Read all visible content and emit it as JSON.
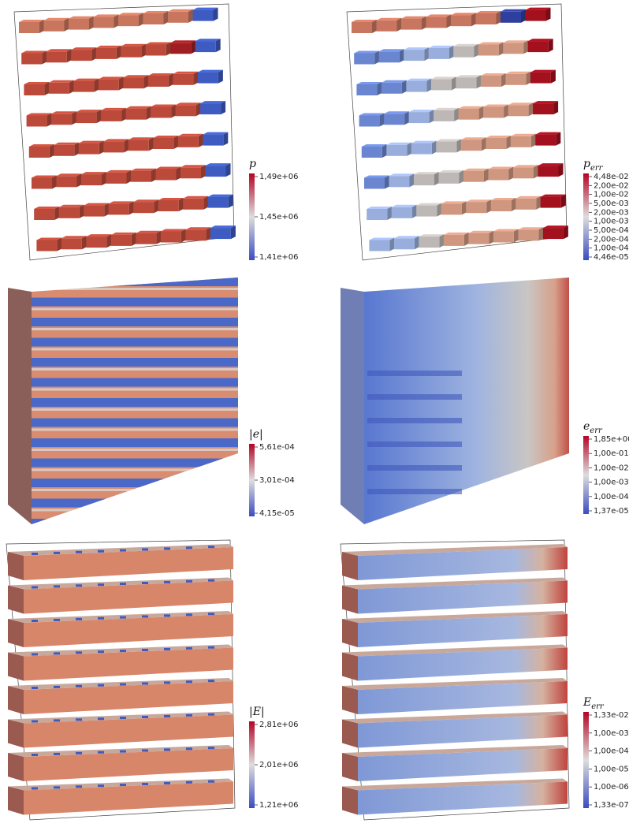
{
  "panels": [
    {
      "colorbar": {
        "symbol": "p",
        "ticks": [
          "1,49e+06",
          "1,45e+06",
          "1,41e+06"
        ]
      }
    },
    {
      "colorbar": {
        "symbol": "p",
        "subscript": "err",
        "ticks": [
          "4,48e-02",
          "2,00e-02",
          "1,00e-02",
          "5,00e-03",
          "2,00e-03",
          "1,00e-03",
          "5,00e-04",
          "2,00e-04",
          "1,00e-04",
          "4,46e-05"
        ]
      }
    },
    {
      "colorbar": {
        "symbol": "|e|",
        "ticks": [
          "5,61e-04",
          "3,01e-04",
          "4,15e-05"
        ]
      }
    },
    {
      "colorbar": {
        "symbol": "e",
        "subscript": "err",
        "ticks": [
          "1,85e+00",
          "1,00e-01",
          "1,00e-02",
          "1,00e-03",
          "1,00e-04",
          "1,37e-05"
        ]
      }
    },
    {
      "colorbar": {
        "symbol": "|E|",
        "ticks": [
          "2,81e+06",
          "2,01e+06",
          "1,21e+06"
        ]
      }
    },
    {
      "colorbar": {
        "symbol": "E",
        "subscript": "err",
        "ticks": [
          "1,33e-02",
          "1,00e-03",
          "1,00e-04",
          "1,00e-05",
          "1,00e-06",
          "1,33e-07"
        ]
      }
    }
  ]
}
